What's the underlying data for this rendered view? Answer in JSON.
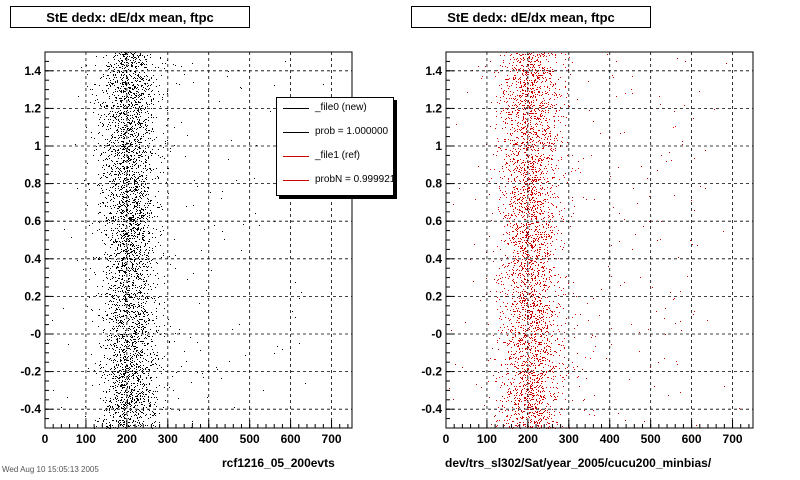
{
  "chart_data": [
    {
      "type": "scatter",
      "title": "StE dedx: dE/dx mean, ftpc",
      "caption": "rcf1216_05_200evts",
      "color": "#000000",
      "xlim": [
        0,
        750
      ],
      "ylim": [
        -0.5,
        1.5
      ],
      "xticks": [
        0,
        100,
        200,
        300,
        400,
        500,
        600,
        700
      ],
      "yticks": [
        -0.4,
        -0.2,
        0.0,
        0.2,
        0.4,
        0.6,
        0.8,
        1.0,
        1.2,
        1.4
      ],
      "ytick_labels": [
        "-0.4",
        "-0.2",
        "-0",
        "0.2",
        "0.4",
        "0.6",
        "0.8",
        "1",
        "1.2",
        "1.4"
      ],
      "grid": true,
      "distribution": {
        "bands": [
          {
            "x_center": 205,
            "x_sigma": 35,
            "weight": 0.95
          },
          {
            "x_center": 300,
            "x_sigma": 200,
            "weight": 0.05
          }
        ],
        "y_uniform": [
          -0.5,
          1.5
        ],
        "points": 4000
      }
    },
    {
      "type": "scatter",
      "title": "StE dedx: dE/dx mean, ftpc",
      "caption": "dev/trs_sl302/Sat/year_2005/cucu200_minbias/",
      "color": "#cc0000",
      "xlim": [
        0,
        750
      ],
      "ylim": [
        -0.5,
        1.5
      ],
      "xticks": [
        0,
        100,
        200,
        300,
        400,
        500,
        600,
        700
      ],
      "yticks": [
        -0.4,
        -0.2,
        0.0,
        0.2,
        0.4,
        0.6,
        0.8,
        1.0,
        1.2,
        1.4
      ],
      "ytick_labels": [
        "-0.4",
        "-0.2",
        "-0",
        "0.2",
        "0.4",
        "0.6",
        "0.8",
        "1",
        "1.2",
        "1.4"
      ],
      "grid": true,
      "distribution": {
        "bands": [
          {
            "x_center": 205,
            "x_sigma": 38,
            "weight": 0.93
          },
          {
            "x_center": 350,
            "x_sigma": 200,
            "weight": 0.07
          }
        ],
        "y_uniform": [
          -0.5,
          1.5
        ],
        "points": 3800
      }
    }
  ],
  "legend": {
    "entries": [
      {
        "label": "_file0 (new)",
        "color": "#000000"
      },
      {
        "label": "prob = 1.000000",
        "color": "#000000"
      },
      {
        "label": "_file1 (ref)",
        "color": "#cc0000"
      },
      {
        "label": "probN = 0.999921",
        "color": "#cc0000"
      }
    ]
  },
  "footer": "Wed Aug 10 15:05:13 2005"
}
